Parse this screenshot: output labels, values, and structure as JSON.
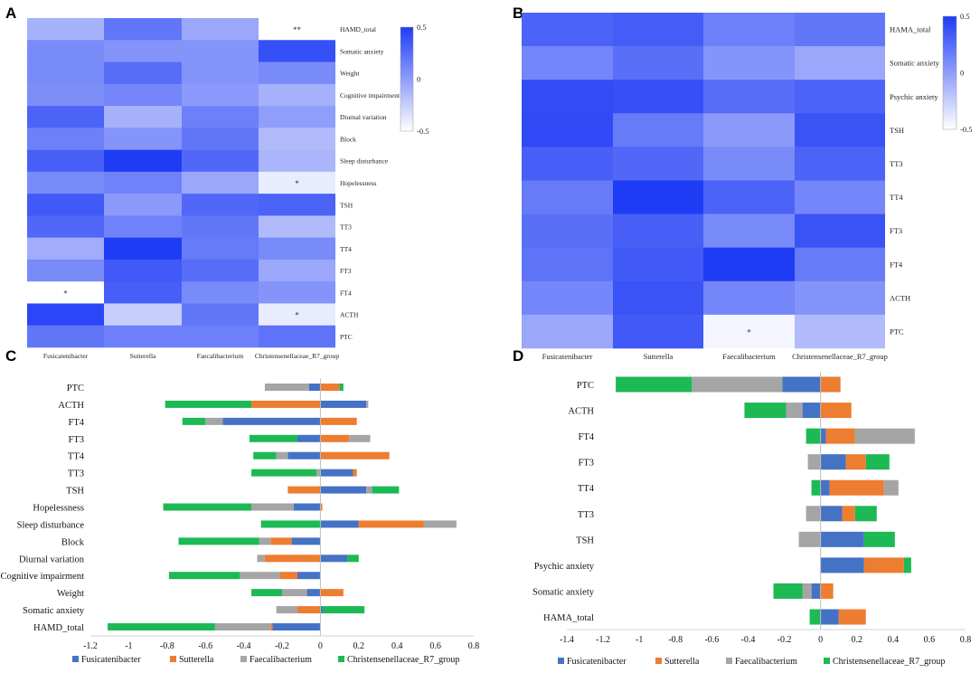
{
  "colors": {
    "low": "#ffffff",
    "high": "#1f3cf5",
    "Fusicatenibacter": "#4472c4",
    "Sutterella": "#ed7d31",
    "Faecalibacterium": "#a5a5a5",
    "Christensenellaceae_R7_group": "#1db954"
  },
  "chart_data": [
    {
      "panel": "A",
      "type": "heatmap",
      "columns": [
        "Fusicatenibacter",
        "Sutterella",
        "Faecalibacterium",
        "Christensenellaceae_R7_group"
      ],
      "rows": [
        "HAMD_total",
        "Somatic anxiety",
        "Weight",
        "Cognitive impairment",
        "Diurnal variation",
        "Block",
        "Sleep disturbance",
        "Hopelessness",
        "TSH",
        "TT3",
        "TT4",
        "FT3",
        "FT4",
        "ACTH",
        "PTC"
      ],
      "values": [
        [
          -0.1,
          0.2,
          -0.05,
          -0.55
        ],
        [
          0.1,
          0.05,
          0.05,
          0.4
        ],
        [
          0.1,
          0.25,
          0.05,
          0.1
        ],
        [
          0.08,
          0.12,
          0.02,
          -0.1
        ],
        [
          0.3,
          -0.1,
          0.15,
          0.0
        ],
        [
          0.15,
          0.05,
          0.2,
          -0.15
        ],
        [
          0.32,
          0.5,
          0.28,
          -0.12
        ],
        [
          0.1,
          0.14,
          -0.05,
          -0.4
        ],
        [
          0.35,
          0.02,
          0.28,
          0.3
        ],
        [
          0.28,
          0.14,
          0.2,
          -0.15
        ],
        [
          -0.08,
          0.58,
          0.18,
          0.1
        ],
        [
          0.1,
          0.35,
          0.25,
          -0.05
        ],
        [
          -0.55,
          0.32,
          0.1,
          0.05
        ],
        [
          0.45,
          -0.25,
          0.2,
          -0.4
        ],
        [
          0.2,
          0.15,
          0.15,
          0.22
        ]
      ],
      "stars": [
        {
          "row": 0,
          "col": 3,
          "text": "**"
        },
        {
          "row": 7,
          "col": 3,
          "text": "*"
        },
        {
          "row": 12,
          "col": 0,
          "text": "*"
        },
        {
          "row": 13,
          "col": 3,
          "text": "*"
        }
      ],
      "colorbar": {
        "max_label": "0.5",
        "mid_label": "0",
        "min_label": "-0.5",
        "range": [
          -0.5,
          0.5
        ]
      }
    },
    {
      "panel": "B",
      "type": "heatmap",
      "columns": [
        "Fusicatenibacter",
        "Sutterella",
        "Faecalibacterium",
        "Christensenellaceae_R7_group"
      ],
      "rows": [
        "HAMA_total",
        "Somatic anxiety",
        "Psychic anxiety",
        "TSH",
        "TT3",
        "TT4",
        "FT3",
        "FT4",
        "ACTH",
        "PTC"
      ],
      "values": [
        [
          0.3,
          0.33,
          0.15,
          0.2
        ],
        [
          0.12,
          0.24,
          0.05,
          -0.05
        ],
        [
          0.42,
          0.4,
          0.25,
          0.3
        ],
        [
          0.43,
          0.18,
          0.02,
          0.38
        ],
        [
          0.32,
          0.28,
          0.1,
          0.3
        ],
        [
          0.18,
          0.55,
          0.3,
          0.12
        ],
        [
          0.24,
          0.32,
          0.1,
          0.38
        ],
        [
          0.22,
          0.35,
          0.6,
          0.18
        ],
        [
          0.12,
          0.38,
          0.12,
          0.05
        ],
        [
          -0.05,
          0.35,
          -0.45,
          -0.15
        ]
      ],
      "stars": [
        {
          "row": 9,
          "col": 2,
          "text": "*"
        }
      ],
      "colorbar": {
        "max_label": "0.5",
        "mid_label": "0",
        "min_label": "-0.5",
        "range": [
          -0.5,
          0.5
        ]
      }
    },
    {
      "panel": "C",
      "type": "bar",
      "orientation": "horizontal-stacked",
      "categories": [
        "PTC",
        "ACTH",
        "FT4",
        "FT3",
        "TT4",
        "TT3",
        "TSH",
        "Hopelessness",
        "Sleep disturbance",
        "Block",
        "Diurnal variation",
        "Cognitive impairment",
        "Weight",
        "Somatic anxiety",
        "HAMD_total"
      ],
      "series": [
        {
          "name": "Fusicatenibacter",
          "values": [
            -0.06,
            0.24,
            -0.51,
            -0.12,
            -0.17,
            0.17,
            0.24,
            -0.14,
            0.2,
            -0.15,
            0.14,
            -0.12,
            -0.07,
            0.01,
            -0.25
          ]
        },
        {
          "name": "Sutterella",
          "values": [
            0.1,
            -0.36,
            0.19,
            0.15,
            0.36,
            0.02,
            -0.17,
            0.01,
            0.34,
            -0.11,
            -0.29,
            -0.09,
            0.12,
            -0.12,
            -0.01
          ]
        },
        {
          "name": "Faecalibacterium",
          "values": [
            -0.23,
            0.01,
            -0.09,
            0.11,
            -0.06,
            -0.02,
            0.03,
            -0.22,
            0.17,
            -0.06,
            -0.04,
            -0.21,
            -0.13,
            -0.11,
            -0.29
          ]
        },
        {
          "name": "Christensenellaceae_R7_group",
          "values": [
            0.02,
            -0.45,
            -0.12,
            -0.25,
            -0.12,
            -0.34,
            0.14,
            -0.46,
            -0.31,
            -0.42,
            0.06,
            -0.37,
            -0.16,
            0.22,
            -0.56
          ]
        }
      ],
      "xlim": [
        -1.2,
        0.8
      ],
      "xticks": [
        "-1.2",
        "-1",
        "-0.8",
        "-0.6",
        "-0.4",
        "-0.2",
        "0",
        "0.2",
        "0.4",
        "0.6",
        "0.8"
      ],
      "legend_position": "bottom"
    },
    {
      "panel": "D",
      "type": "bar",
      "orientation": "horizontal-stacked",
      "categories": [
        "PTC",
        "ACTH",
        "FT4",
        "FT3",
        "TT4",
        "TT3",
        "TSH",
        "Psychic anxiety",
        "Somatic anxiety",
        "HAMA_total"
      ],
      "series": [
        {
          "name": "Fusicatenibacter",
          "values": [
            -0.21,
            -0.1,
            0.03,
            0.14,
            0.05,
            0.12,
            0.24,
            0.24,
            -0.05,
            0.1
          ]
        },
        {
          "name": "Sutterella",
          "values": [
            0.11,
            0.17,
            0.16,
            0.11,
            0.3,
            0.07,
            0.0,
            0.22,
            0.07,
            0.15
          ]
        },
        {
          "name": "Faecalibacterium",
          "values": [
            -0.5,
            -0.09,
            0.33,
            -0.07,
            0.08,
            -0.08,
            -0.12,
            0.0,
            -0.05,
            0.0
          ]
        },
        {
          "name": "Christensenellaceae_R7_group",
          "values": [
            -0.42,
            -0.23,
            -0.08,
            0.13,
            -0.05,
            0.12,
            0.17,
            0.04,
            -0.16,
            -0.06
          ]
        }
      ],
      "xlim": [
        -1.4,
        0.8
      ],
      "xticks": [
        "-1.4",
        "-1.2",
        "-1",
        "-0.8",
        "-0.6",
        "-0.4",
        "-0.2",
        "0",
        "0.2",
        "0.4",
        "0.6",
        "0.8"
      ],
      "legend_position": "bottom"
    }
  ],
  "panels": {
    "A": {
      "letter": "A"
    },
    "B": {
      "letter": "B"
    },
    "C": {
      "letter": "C"
    },
    "D": {
      "letter": "D"
    }
  }
}
